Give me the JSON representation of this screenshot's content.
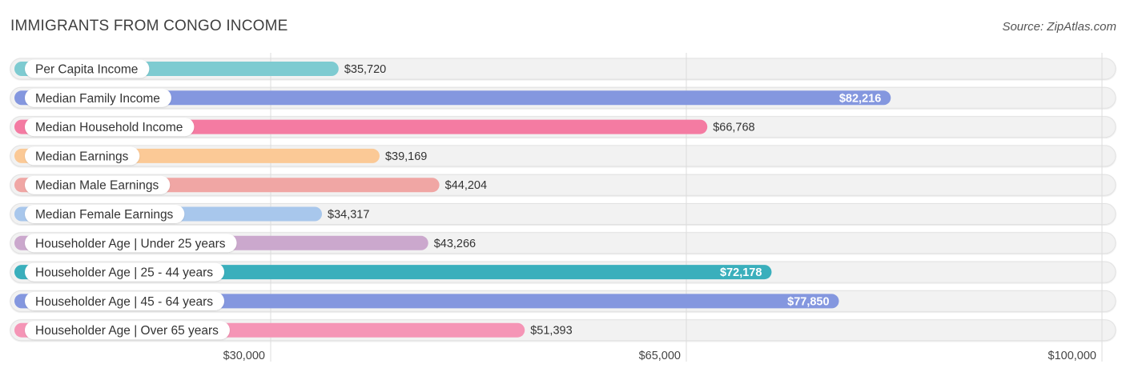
{
  "title": "IMMIGRANTS FROM CONGO INCOME",
  "source": "Source: ZipAtlas.com",
  "chart_data": {
    "type": "bar",
    "orientation": "horizontal",
    "title": "IMMIGRANTS FROM CONGO INCOME",
    "xlim": [
      0,
      100000
    ],
    "grid": true,
    "ticks": [
      {
        "value": 30000,
        "label": "$30,000"
      },
      {
        "value": 65000,
        "label": "$65,000"
      },
      {
        "value": 100000,
        "label": "$100,000"
      }
    ],
    "bars": [
      {
        "label": "Per Capita Income",
        "value": 35720,
        "display": "$35,720",
        "color": "#7ecbd1"
      },
      {
        "label": "Median Family Income",
        "value": 82216,
        "display": "$82,216",
        "color": "#8497df"
      },
      {
        "label": "Median Household Income",
        "value": 66768,
        "display": "$66,768",
        "color": "#f47ba2"
      },
      {
        "label": "Median Earnings",
        "value": 39169,
        "display": "$39,169",
        "color": "#fbc996"
      },
      {
        "label": "Median Male Earnings",
        "value": 44204,
        "display": "$44,204",
        "color": "#f0a6a4"
      },
      {
        "label": "Median Female Earnings",
        "value": 34317,
        "display": "$34,317",
        "color": "#a8c7ec"
      },
      {
        "label": "Householder Age | Under 25 years",
        "value": 43266,
        "display": "$43,266",
        "color": "#cba8cd"
      },
      {
        "label": "Householder Age | 25 - 44 years",
        "value": 72178,
        "display": "$72,178",
        "color": "#3aafbc"
      },
      {
        "label": "Householder Age | 45 - 64 years",
        "value": 77850,
        "display": "$77,850",
        "color": "#8497df"
      },
      {
        "label": "Householder Age | Over 65 years",
        "value": 51393,
        "display": "$51,393",
        "color": "#f595b6"
      }
    ]
  }
}
